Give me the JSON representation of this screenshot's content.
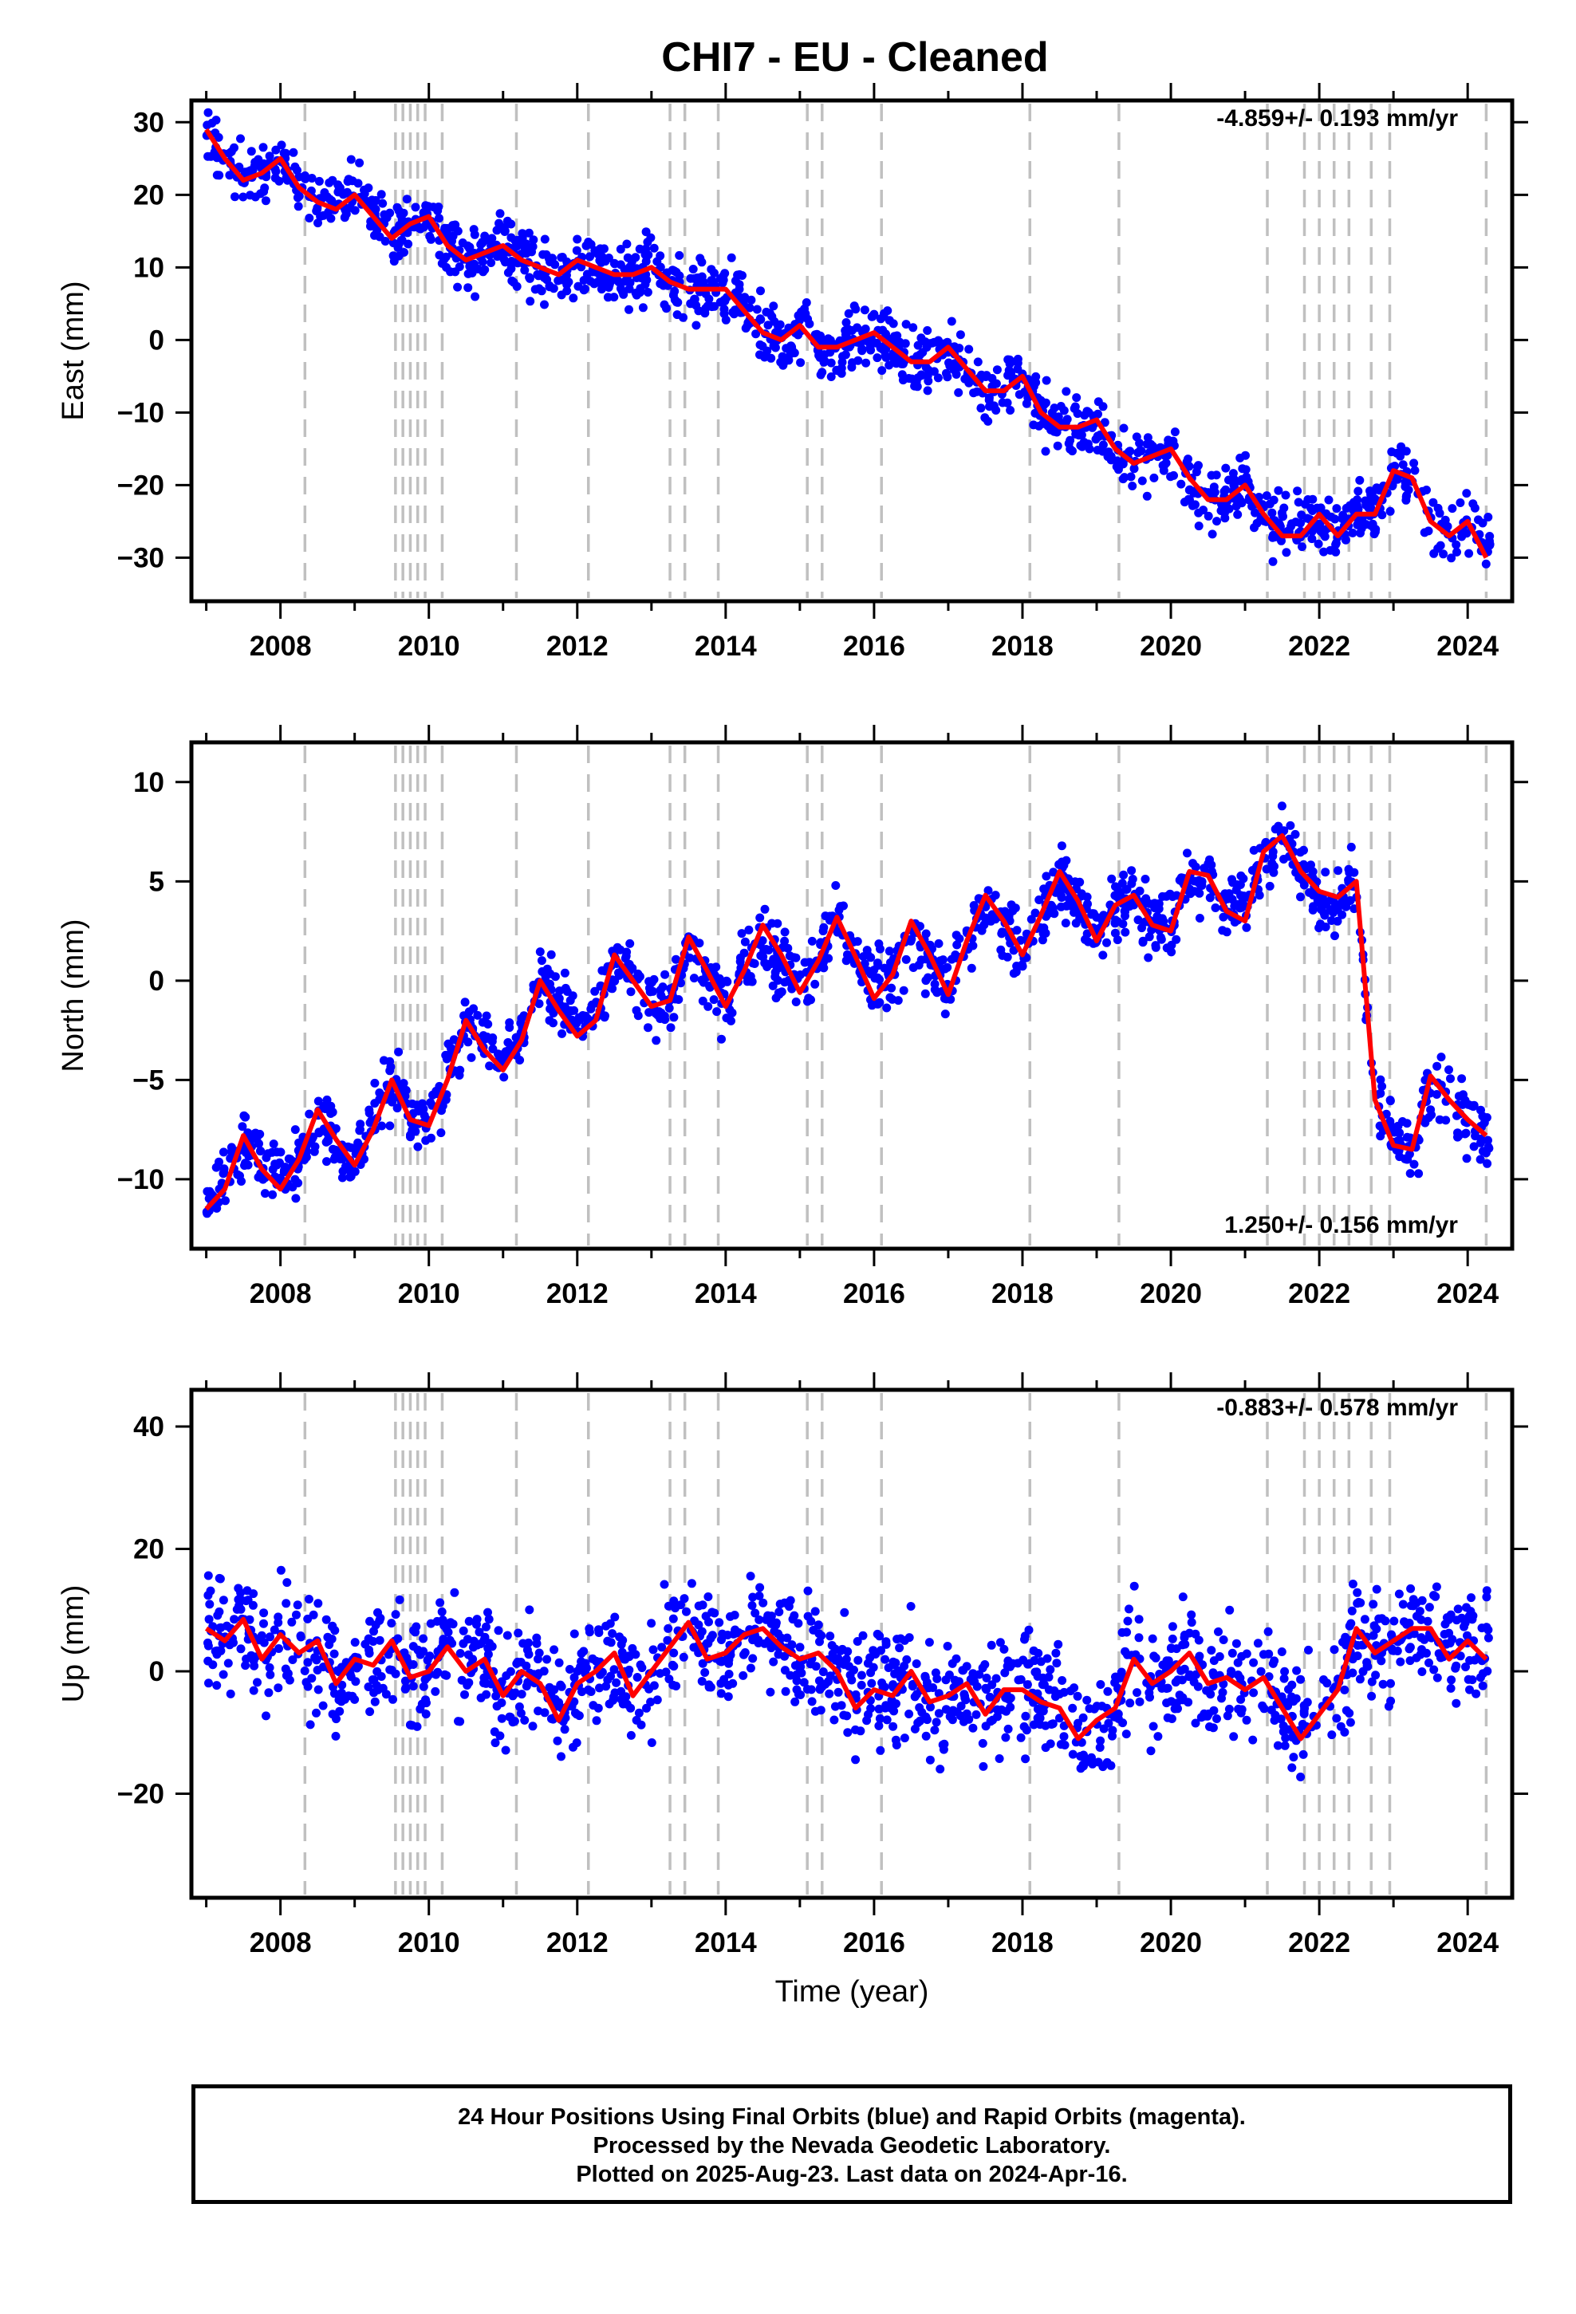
{
  "title": "CHI7  - EU - Cleaned",
  "xlabel": "Time (year)",
  "colors": {
    "data": "#0000ff",
    "model": "#ff0000",
    "event": "#c0c0c0",
    "axis": "#000000"
  },
  "footer": {
    "line1": "24 Hour Positions Using Final Orbits (blue) and Rapid Orbits (magenta).",
    "line2": "Processed by the Nevada Geodetic Laboratory.",
    "line3": "Plotted on 2025-Aug-23. Last data on 2024-Apr-16."
  },
  "chart_data": [
    {
      "type": "scatter",
      "component": "East",
      "ylabel": "East (mm)",
      "rate_text": "-4.859+/- 0.193 mm/yr",
      "rate_position": "top-right",
      "xlim": [
        2006.8,
        2024.6
      ],
      "ylim": [
        -36,
        33
      ],
      "x_ticks": [
        2008,
        2010,
        2012,
        2014,
        2016,
        2018,
        2020,
        2022,
        2024
      ],
      "y_ticks": [
        -30,
        -20,
        -10,
        0,
        10,
        20,
        30
      ],
      "series": [
        {
          "name": "Final Orbits",
          "style": "points",
          "color": "#0000ff",
          "x": [
            2007.0,
            2007.25,
            2007.5,
            2007.75,
            2008.0,
            2008.25,
            2008.5,
            2008.75,
            2009.0,
            2009.25,
            2009.5,
            2009.75,
            2010.0,
            2010.25,
            2010.5,
            2010.75,
            2011.0,
            2011.25,
            2011.5,
            2011.75,
            2012.0,
            2012.25,
            2012.5,
            2012.75,
            2013.0,
            2013.25,
            2013.5,
            2013.75,
            2014.0,
            2014.25,
            2014.5,
            2014.75,
            2015.0,
            2015.25,
            2015.5,
            2015.75,
            2016.0,
            2016.25,
            2016.5,
            2016.75,
            2017.0,
            2017.25,
            2017.5,
            2017.75,
            2018.0,
            2018.25,
            2018.5,
            2018.75,
            2019.0,
            2019.25,
            2019.5,
            2019.75,
            2020.0,
            2020.25,
            2020.5,
            2020.75,
            2021.0,
            2021.25,
            2021.5,
            2021.75,
            2022.0,
            2022.25,
            2022.5,
            2022.75,
            2023.0,
            2023.25,
            2023.5,
            2023.75,
            2024.0,
            2024.25
          ],
          "y": [
            28,
            25,
            23,
            23,
            25,
            21,
            19,
            19,
            21,
            18,
            14,
            16,
            17,
            13,
            11,
            12,
            13,
            11,
            10,
            9,
            11,
            10,
            9,
            9,
            10,
            8,
            7,
            7,
            7,
            4,
            1,
            0,
            2,
            -1,
            -1,
            0,
            1,
            -1,
            -3,
            -3,
            -1,
            -4,
            -7,
            -7,
            -5,
            -10,
            -12,
            -12,
            -11,
            -15,
            -17,
            -16,
            -15,
            -19,
            -22,
            -22,
            -20,
            -24,
            -26,
            -26,
            -24,
            -26,
            -24,
            -24,
            -17,
            -19,
            -25,
            -27,
            -25,
            -28
          ]
        },
        {
          "name": "Model",
          "style": "line",
          "color": "#ff0000",
          "x": [
            2007.0,
            2007.25,
            2007.5,
            2007.75,
            2008.0,
            2008.25,
            2008.5,
            2008.75,
            2009.0,
            2009.25,
            2009.5,
            2009.75,
            2010.0,
            2010.25,
            2010.5,
            2010.75,
            2011.0,
            2011.25,
            2011.5,
            2011.75,
            2012.0,
            2012.25,
            2012.5,
            2012.75,
            2013.0,
            2013.25,
            2013.5,
            2013.75,
            2014.0,
            2014.25,
            2014.5,
            2014.75,
            2015.0,
            2015.25,
            2015.5,
            2015.75,
            2016.0,
            2016.25,
            2016.5,
            2016.75,
            2017.0,
            2017.25,
            2017.5,
            2017.75,
            2018.0,
            2018.25,
            2018.5,
            2018.75,
            2019.0,
            2019.25,
            2019.5,
            2019.75,
            2020.0,
            2020.25,
            2020.5,
            2020.75,
            2021.0,
            2021.25,
            2021.5,
            2021.75,
            2022.0,
            2022.25,
            2022.5,
            2022.75,
            2023.0,
            2023.25,
            2023.5,
            2023.75,
            2024.0,
            2024.25
          ],
          "y": [
            29,
            25,
            22,
            23,
            25,
            21,
            19,
            18,
            20,
            17,
            14,
            16,
            17,
            13,
            11,
            12,
            13,
            11,
            10,
            9,
            11,
            10,
            9,
            9,
            10,
            8,
            7,
            7,
            7,
            4,
            1,
            0,
            2,
            -1,
            -1,
            0,
            1,
            -1,
            -3,
            -3,
            -1,
            -4,
            -7,
            -7,
            -5,
            -10,
            -12,
            -12,
            -11,
            -15,
            -17,
            -16,
            -15,
            -19,
            -22,
            -22,
            -20,
            -24,
            -27,
            -27,
            -24,
            -27,
            -24,
            -24,
            -18,
            -19,
            -25,
            -27,
            -25,
            -30
          ]
        }
      ],
      "event_lines": [
        2008.33,
        2009.55,
        2009.65,
        2009.75,
        2009.85,
        2009.95,
        2010.18,
        2011.18,
        2012.15,
        2013.25,
        2013.45,
        2013.9,
        2015.1,
        2015.3,
        2016.1,
        2018.1,
        2019.3,
        2021.3,
        2021.8,
        2022.0,
        2022.2,
        2022.4,
        2022.7,
        2022.95,
        2024.25
      ]
    },
    {
      "type": "scatter",
      "component": "North",
      "ylabel": "North (mm)",
      "rate_text": "1.250+/- 0.156 mm/yr",
      "rate_position": "bottom-right",
      "xlim": [
        2006.8,
        2024.6
      ],
      "ylim": [
        -13.5,
        12
      ],
      "x_ticks": [
        2008,
        2010,
        2012,
        2014,
        2016,
        2018,
        2020,
        2022,
        2024
      ],
      "y_ticks": [
        -10,
        -5,
        0,
        5,
        10
      ],
      "series": [
        {
          "name": "Final Orbits",
          "style": "points",
          "color": "#0000ff",
          "x": [
            2007.0,
            2007.25,
            2007.5,
            2007.75,
            2008.0,
            2008.25,
            2008.5,
            2008.75,
            2009.0,
            2009.25,
            2009.5,
            2009.75,
            2010.0,
            2010.25,
            2010.5,
            2010.75,
            2011.0,
            2011.25,
            2011.5,
            2011.75,
            2012.0,
            2012.25,
            2012.5,
            2012.75,
            2013.0,
            2013.25,
            2013.5,
            2013.75,
            2014.0,
            2014.25,
            2014.5,
            2014.75,
            2015.0,
            2015.25,
            2015.5,
            2015.75,
            2016.0,
            2016.25,
            2016.5,
            2016.75,
            2017.0,
            2017.25,
            2017.5,
            2017.75,
            2018.0,
            2018.25,
            2018.5,
            2018.75,
            2019.0,
            2019.25,
            2019.5,
            2019.75,
            2020.0,
            2020.25,
            2020.5,
            2020.75,
            2021.0,
            2021.25,
            2021.5,
            2021.75,
            2022.0,
            2022.25,
            2022.5,
            2022.75,
            2023.0,
            2023.25,
            2023.5,
            2023.75,
            2024.0,
            2024.25
          ],
          "y": [
            -11,
            -10,
            -8,
            -9,
            -10,
            -9,
            -7,
            -8,
            -9,
            -7,
            -5,
            -7,
            -7,
            -5,
            -2,
            -3,
            -4,
            -3,
            0,
            -1,
            -2,
            -2,
            1,
            0,
            -1,
            -1,
            2,
            0,
            -1,
            1,
            2,
            1,
            0,
            1,
            3,
            1,
            0,
            0,
            2,
            1,
            0,
            2,
            4,
            3,
            1,
            3,
            5,
            4,
            2,
            4,
            4,
            3,
            3,
            5,
            5,
            4,
            4,
            6,
            7,
            6,
            4,
            4,
            5,
            -6,
            -8,
            -9,
            -5,
            -6,
            -7,
            -8
          ]
        },
        {
          "name": "Model",
          "style": "line",
          "color": "#ff0000",
          "x": [
            2007.0,
            2007.25,
            2007.5,
            2007.75,
            2008.0,
            2008.25,
            2008.5,
            2008.75,
            2009.0,
            2009.25,
            2009.5,
            2009.75,
            2010.0,
            2010.25,
            2010.5,
            2010.75,
            2011.0,
            2011.25,
            2011.5,
            2011.75,
            2012.0,
            2012.25,
            2012.5,
            2012.75,
            2013.0,
            2013.25,
            2013.5,
            2013.75,
            2014.0,
            2014.25,
            2014.5,
            2014.75,
            2015.0,
            2015.25,
            2015.5,
            2015.75,
            2016.0,
            2016.25,
            2016.5,
            2016.75,
            2017.0,
            2017.25,
            2017.5,
            2017.75,
            2018.0,
            2018.25,
            2018.5,
            2018.75,
            2019.0,
            2019.25,
            2019.5,
            2019.75,
            2020.0,
            2020.25,
            2020.5,
            2020.75,
            2021.0,
            2021.25,
            2021.5,
            2021.75,
            2022.0,
            2022.25,
            2022.5,
            2022.75,
            2023.0,
            2023.25,
            2023.5,
            2023.75,
            2024.0,
            2024.25
          ],
          "y": [
            -11.5,
            -10.5,
            -7.8,
            -9.5,
            -10.5,
            -9.0,
            -6.5,
            -8.0,
            -9.3,
            -7.5,
            -5.0,
            -7.0,
            -7.3,
            -5.0,
            -2.0,
            -3.5,
            -4.5,
            -3.0,
            0.0,
            -1.5,
            -2.8,
            -2.0,
            1.3,
            0.0,
            -1.3,
            -1.0,
            2.2,
            0.5,
            -1.3,
            0.5,
            2.8,
            1.3,
            -0.6,
            1.0,
            3.2,
            1.2,
            -0.9,
            0.3,
            3.0,
            1.3,
            -0.7,
            2.0,
            4.3,
            3.0,
            1.3,
            3.3,
            5.5,
            4.0,
            2.0,
            3.8,
            4.3,
            2.8,
            2.5,
            5.5,
            5.3,
            3.5,
            3.0,
            6.5,
            7.3,
            5.5,
            4.5,
            4.2,
            5.0,
            -6.0,
            -8.3,
            -8.5,
            -4.8,
            -6.0,
            -7.0,
            -7.8
          ]
        }
      ],
      "event_lines": [
        2008.33,
        2009.55,
        2009.65,
        2009.75,
        2009.85,
        2009.95,
        2010.18,
        2011.18,
        2012.15,
        2013.25,
        2013.45,
        2013.9,
        2015.1,
        2015.3,
        2016.1,
        2018.1,
        2019.3,
        2021.3,
        2021.8,
        2022.0,
        2022.2,
        2022.4,
        2022.7,
        2022.95,
        2024.25
      ]
    },
    {
      "type": "scatter",
      "component": "Up",
      "ylabel": "Up (mm)",
      "rate_text": "-0.883+/- 0.578 mm/yr",
      "rate_position": "top-right",
      "xlim": [
        2006.8,
        2024.6
      ],
      "ylim": [
        -37,
        46
      ],
      "x_ticks": [
        2008,
        2010,
        2012,
        2014,
        2016,
        2018,
        2020,
        2022,
        2024
      ],
      "y_ticks": [
        -20,
        0,
        20,
        40
      ],
      "series": [
        {
          "name": "Final Orbits",
          "style": "points",
          "color": "#0000ff",
          "x": [
            2007.0,
            2007.25,
            2007.5,
            2007.75,
            2008.0,
            2008.25,
            2008.5,
            2008.75,
            2009.0,
            2009.25,
            2009.5,
            2009.75,
            2010.0,
            2010.25,
            2010.5,
            2010.75,
            2011.0,
            2011.25,
            2011.5,
            2011.75,
            2012.0,
            2012.25,
            2012.5,
            2012.75,
            2013.0,
            2013.25,
            2013.5,
            2013.75,
            2014.0,
            2014.25,
            2014.5,
            2014.75,
            2015.0,
            2015.25,
            2015.5,
            2015.75,
            2016.0,
            2016.25,
            2016.5,
            2016.75,
            2017.0,
            2017.25,
            2017.5,
            2017.75,
            2018.0,
            2018.25,
            2018.5,
            2018.75,
            2019.0,
            2019.25,
            2019.5,
            2019.75,
            2020.0,
            2020.25,
            2020.5,
            2020.75,
            2021.0,
            2021.25,
            2021.5,
            2021.75,
            2022.0,
            2022.25,
            2022.5,
            2022.75,
            2023.0,
            2023.25,
            2023.5,
            2023.75,
            2024.0,
            2024.25
          ],
          "y": [
            7,
            6,
            9,
            2,
            6,
            3,
            5,
            -2,
            2,
            1,
            5,
            -1,
            0,
            4,
            0,
            2,
            -4,
            0,
            -2,
            -7,
            -2,
            0,
            3,
            -3,
            0,
            4,
            8,
            3,
            3,
            6,
            7,
            4,
            2,
            3,
            0,
            -6,
            -3,
            -4,
            0,
            -5,
            -4,
            -2,
            -6,
            -3,
            -3,
            -5,
            -6,
            -10,
            -8,
            -6,
            2,
            -2,
            0,
            3,
            -2,
            -1,
            -3,
            -1,
            -6,
            -9,
            -6,
            -3,
            7,
            3,
            5,
            7,
            6,
            3,
            5,
            3
          ]
        },
        {
          "name": "Model",
          "style": "line",
          "color": "#ff0000",
          "x": [
            2007.0,
            2007.25,
            2007.5,
            2007.75,
            2008.0,
            2008.25,
            2008.5,
            2008.75,
            2009.0,
            2009.25,
            2009.5,
            2009.75,
            2010.0,
            2010.25,
            2010.5,
            2010.75,
            2011.0,
            2011.25,
            2011.5,
            2011.75,
            2012.0,
            2012.25,
            2012.5,
            2012.75,
            2013.0,
            2013.25,
            2013.5,
            2013.75,
            2014.0,
            2014.25,
            2014.5,
            2014.75,
            2015.0,
            2015.25,
            2015.5,
            2015.75,
            2016.0,
            2016.25,
            2016.5,
            2016.75,
            2017.0,
            2017.25,
            2017.5,
            2017.75,
            2018.0,
            2018.25,
            2018.5,
            2018.75,
            2019.0,
            2019.25,
            2019.5,
            2019.75,
            2020.0,
            2020.25,
            2020.5,
            2020.75,
            2021.0,
            2021.25,
            2021.5,
            2021.75,
            2022.0,
            2022.25,
            2022.5,
            2022.75,
            2023.0,
            2023.25,
            2023.5,
            2023.75,
            2024.0,
            2024.25
          ],
          "y": [
            7,
            5,
            8.5,
            2,
            6,
            3,
            5,
            -2,
            2,
            1,
            5,
            -1,
            0,
            4,
            0,
            2,
            -4,
            0,
            -2,
            -8,
            -2,
            0,
            3,
            -4,
            0,
            4,
            8,
            2,
            3,
            6,
            7,
            4,
            2,
            3,
            0,
            -6,
            -3,
            -4,
            0,
            -5,
            -4,
            -2,
            -7,
            -3,
            -3,
            -5,
            -6,
            -11,
            -8,
            -6,
            2,
            -2,
            0,
            3,
            -2,
            -1,
            -3,
            -1,
            -6,
            -11,
            -7,
            -3,
            7,
            3,
            5,
            7,
            7,
            2,
            5,
            2
          ]
        }
      ],
      "event_lines": [
        2008.33,
        2009.55,
        2009.65,
        2009.75,
        2009.85,
        2009.95,
        2010.18,
        2011.18,
        2012.15,
        2013.25,
        2013.45,
        2013.9,
        2015.1,
        2015.3,
        2016.1,
        2018.1,
        2019.3,
        2021.3,
        2021.8,
        2022.0,
        2022.2,
        2022.4,
        2022.7,
        2022.95,
        2024.25
      ]
    }
  ]
}
